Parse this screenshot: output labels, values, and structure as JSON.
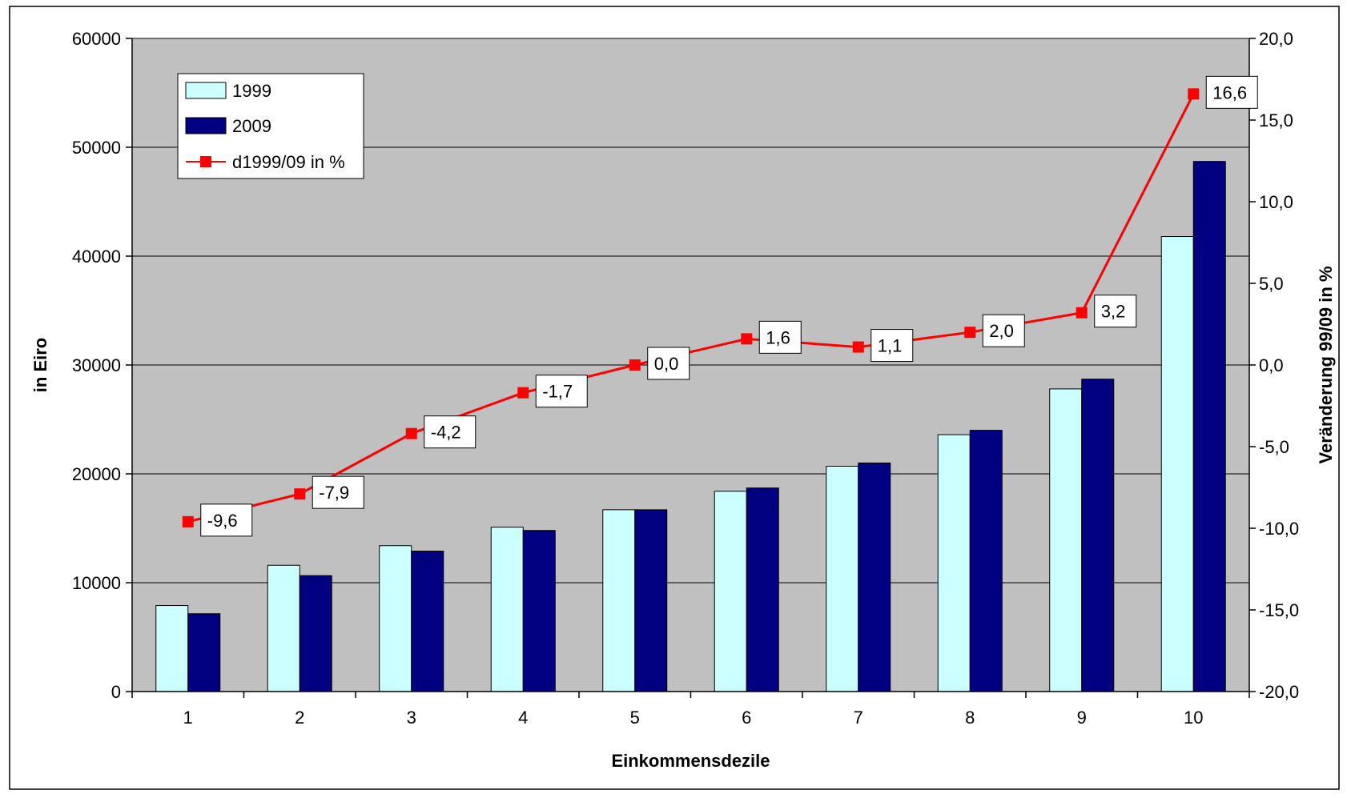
{
  "chart_data": {
    "type": "bar",
    "categories": [
      "1",
      "2",
      "3",
      "4",
      "5",
      "6",
      "7",
      "8",
      "9",
      "10"
    ],
    "series": [
      {
        "name": "1999",
        "type": "bar",
        "axis": "left",
        "color": "#ccffff",
        "values": [
          7900,
          11600,
          13400,
          15100,
          16700,
          18400,
          20700,
          23600,
          27800,
          41800
        ]
      },
      {
        "name": "2009",
        "type": "bar",
        "axis": "left",
        "color": "#000080",
        "values": [
          7150,
          10650,
          12900,
          14800,
          16700,
          18700,
          21000,
          24000,
          28700,
          48700
        ]
      },
      {
        "name": "d1999/09 in %",
        "type": "line",
        "axis": "right",
        "color": "#ff0000",
        "values": [
          -9.6,
          -7.9,
          -4.2,
          -1.7,
          0.0,
          1.6,
          1.1,
          2.0,
          3.2,
          16.6
        ],
        "labels": [
          "-9,6",
          "-7,9",
          "-4,2",
          "-1,7",
          "0,0",
          "1,6",
          "1,1",
          "2,0",
          "3,2",
          "16,6"
        ]
      }
    ],
    "xlabel": "Einkommensdezile",
    "ylabel": "in Eiro",
    "y2label": "Veränderung 99/09 in %",
    "ylim": [
      0,
      60000
    ],
    "y2lim": [
      -20,
      20
    ],
    "yticks": [
      "0",
      "10000",
      "20000",
      "30000",
      "40000",
      "50000",
      "60000"
    ],
    "y2ticks": [
      "-20,0",
      "-15,0",
      "-10,0",
      "-5,0",
      "0,0",
      "5,0",
      "10,0",
      "15,0",
      "20,0"
    ],
    "grid": true,
    "plot_background": "#c0c0c0",
    "legend_position": "top-left"
  }
}
